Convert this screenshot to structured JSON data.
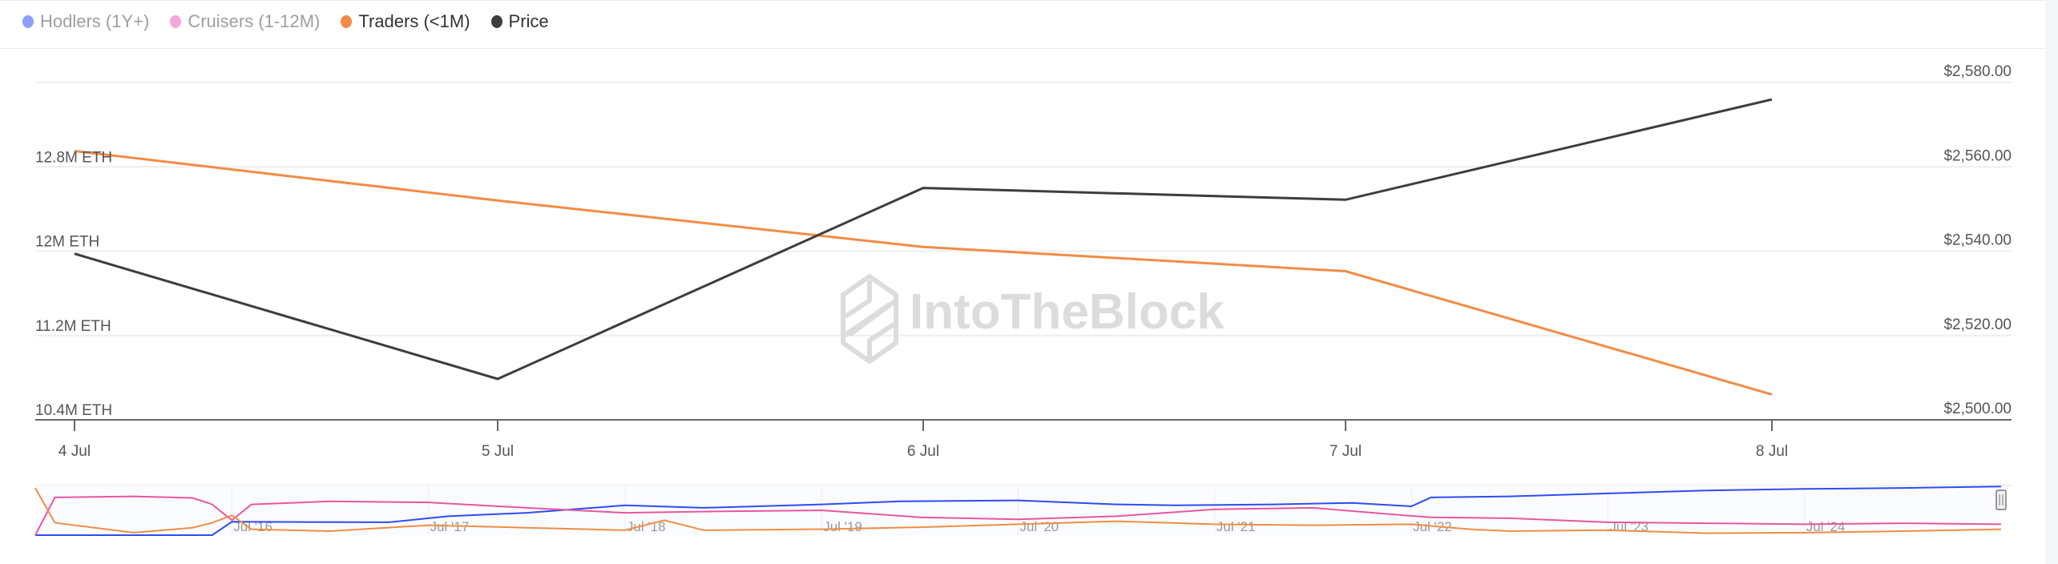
{
  "legend": [
    {
      "label": "Hodlers (1Y+)",
      "color": "#8c9eff",
      "active": false
    },
    {
      "label": "Cruisers (1-12M)",
      "color": "#f4a6d7",
      "active": false
    },
    {
      "label": "Traders (<1M)",
      "color": "#f28c45",
      "active": true
    },
    {
      "label": "Price",
      "color": "#3d3d3d",
      "active": true
    }
  ],
  "watermark": "IntoTheBlock",
  "chart_data": {
    "type": "line",
    "categories": [
      "4 Jul",
      "5 Jul",
      "6 Jul",
      "7 Jul",
      "8 Jul"
    ],
    "series": [
      {
        "name": "Traders (<1M)",
        "axis": "left",
        "color": "#f28c45",
        "values": [
          12950000,
          12480000,
          12040000,
          11810000,
          10640000
        ]
      },
      {
        "name": "Price",
        "axis": "right",
        "color": "#3d3d3d",
        "values": [
          2539.4,
          2509.7,
          2555.0,
          2552.2,
          2576.0
        ]
      }
    ],
    "left_axis": {
      "ticks": [
        10400000,
        11200000,
        12000000,
        12800000
      ],
      "tick_labels": [
        "10.4M ETH",
        "11.2M ETH",
        "12M ETH",
        "12.8M ETH"
      ],
      "range": [
        10400000,
        13600000
      ]
    },
    "right_axis": {
      "ticks": [
        2500,
        2520,
        2540,
        2560,
        2580
      ],
      "tick_labels": [
        "$2,500.00",
        "$2,520.00",
        "$2,540.00",
        "$2,560.00",
        "$2,580.00"
      ],
      "range": [
        2500,
        2580
      ]
    },
    "grid": true,
    "legend": "top-left",
    "navigator": {
      "range": [
        2015.5,
        2025.5
      ],
      "tick_labels": [
        "Jul '16",
        "Jul '17",
        "Jul '18",
        "Jul '19",
        "Jul '20",
        "Jul '21",
        "Jul '22",
        "Jul '23",
        "Jul '24"
      ],
      "tick_years": [
        2016.5,
        2017.5,
        2018.5,
        2019.5,
        2020.5,
        2021.5,
        2022.5,
        2023.5,
        2024.5
      ],
      "series": [
        {
          "name": "Hodlers (1Y+)",
          "color": "#2b4df5",
          "x": [
            2015.5,
            2016.4,
            2016.5,
            2017.3,
            2017.6,
            2018.0,
            2018.5,
            2018.9,
            2019.5,
            2019.9,
            2020.5,
            2021.0,
            2021.3,
            2021.8,
            2022.2,
            2022.5,
            2022.6,
            2023.0,
            2023.5,
            2024.0,
            2024.5,
            2025.0,
            2025.5
          ],
          "values": [
            0,
            0,
            0.27,
            0.26,
            0.38,
            0.45,
            0.6,
            0.55,
            0.62,
            0.68,
            0.7,
            0.62,
            0.6,
            0.62,
            0.65,
            0.58,
            0.76,
            0.78,
            0.84,
            0.9,
            0.93,
            0.95,
            0.98
          ]
        },
        {
          "name": "Cruisers (1-12M)",
          "color": "#e8569e",
          "x": [
            2015.5,
            2015.6,
            2016.0,
            2016.3,
            2016.4,
            2016.5,
            2016.6,
            2017.0,
            2017.5,
            2018.0,
            2018.5,
            2019.0,
            2019.5,
            2020.0,
            2020.5,
            2021.0,
            2021.5,
            2022.0,
            2022.4,
            2022.6,
            2023.0,
            2023.5,
            2024.0,
            2024.5,
            2025.0,
            2025.5
          ],
          "values": [
            0,
            0.76,
            0.78,
            0.75,
            0.62,
            0.3,
            0.62,
            0.68,
            0.66,
            0.55,
            0.45,
            0.48,
            0.5,
            0.36,
            0.32,
            0.38,
            0.52,
            0.55,
            0.42,
            0.36,
            0.34,
            0.26,
            0.24,
            0.22,
            0.24,
            0.22
          ]
        },
        {
          "name": "Traders (<1M)",
          "color": "#f28c45",
          "x": [
            2015.5,
            2015.6,
            2016.0,
            2016.3,
            2016.4,
            2016.5,
            2016.6,
            2017.0,
            2017.5,
            2018.0,
            2018.5,
            2018.7,
            2018.9,
            2019.5,
            2020.0,
            2020.5,
            2021.0,
            2021.5,
            2022.0,
            2022.5,
            2022.8,
            2023.0,
            2023.5,
            2024.0,
            2024.5,
            2025.0,
            2025.5
          ],
          "values": [
            0.95,
            0.25,
            0.05,
            0.15,
            0.25,
            0.4,
            0.12,
            0.08,
            0.2,
            0.15,
            0.1,
            0.3,
            0.1,
            0.12,
            0.16,
            0.22,
            0.28,
            0.22,
            0.2,
            0.22,
            0.12,
            0.08,
            0.1,
            0.04,
            0.05,
            0.08,
            0.12
          ]
        }
      ]
    }
  }
}
